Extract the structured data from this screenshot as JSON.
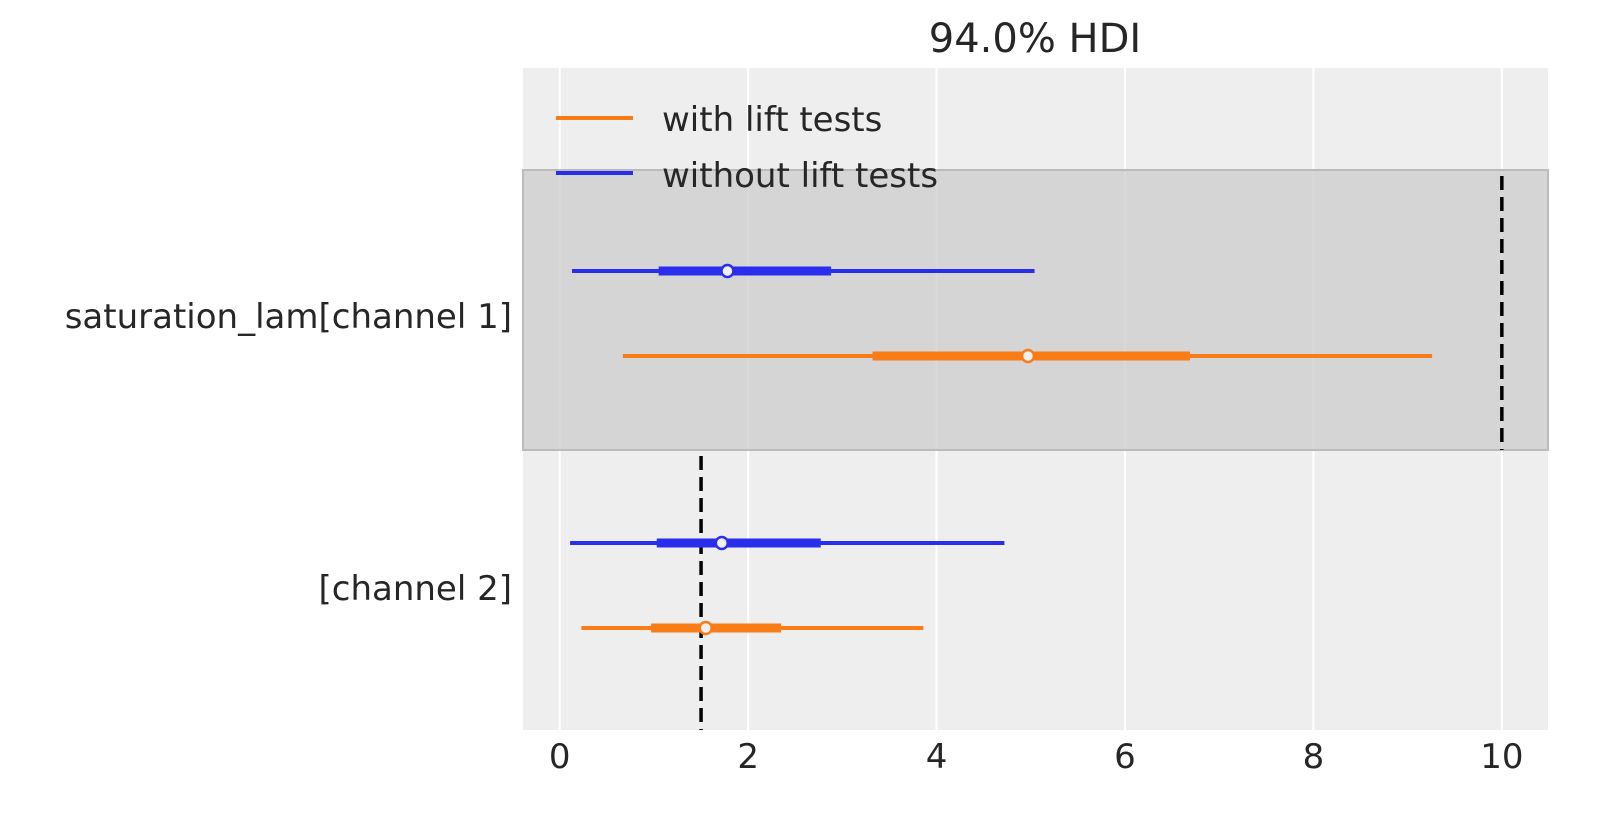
{
  "chart_data": {
    "type": "forest",
    "title": "94.0% HDI",
    "xlabel": "",
    "ylabel": "",
    "xlim": [
      -0.39,
      10.49
    ],
    "xticks": [
      0,
      2,
      4,
      6,
      8,
      10
    ],
    "grid": true,
    "legend": {
      "placement": "top-left",
      "entries": [
        {
          "name": "with lift tests",
          "color": "#fa7c17"
        },
        {
          "name": "without lift tests",
          "color": "#2a2eec"
        }
      ]
    },
    "rows": [
      {
        "label": "saturation_lam[channel 1]",
        "highlighted": true,
        "reference_line": 10,
        "intervals": [
          {
            "series": "without lift tests",
            "color": "#2a2eec",
            "hdi94": [
              0.13,
              5.04
            ],
            "hdi50": [
              1.05,
              2.88
            ],
            "point": 1.78
          },
          {
            "series": "with lift tests",
            "color": "#fa7c17",
            "hdi94": [
              0.67,
              9.26
            ],
            "hdi50": [
              3.32,
              6.69
            ],
            "point": 4.97
          }
        ]
      },
      {
        "label": "[channel 2]",
        "highlighted": false,
        "reference_line": 1.5,
        "intervals": [
          {
            "series": "without lift tests",
            "color": "#2a2eec",
            "hdi94": [
              0.11,
              4.72
            ],
            "hdi50": [
              1.03,
              2.77
            ],
            "point": 1.72
          },
          {
            "series": "with lift tests",
            "color": "#fa7c17",
            "hdi94": [
              0.23,
              3.86
            ],
            "hdi50": [
              0.97,
              2.35
            ],
            "point": 1.55
          }
        ]
      }
    ]
  }
}
